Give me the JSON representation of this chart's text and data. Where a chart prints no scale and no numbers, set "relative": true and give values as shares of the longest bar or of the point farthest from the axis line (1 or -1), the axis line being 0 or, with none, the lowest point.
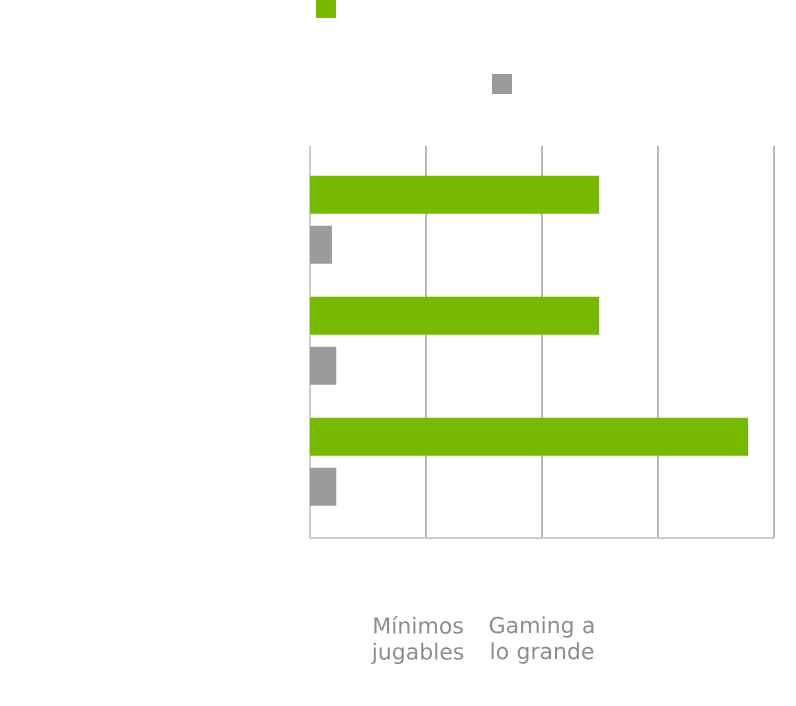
{
  "chart_data": {
    "type": "bar",
    "orientation": "horizontal",
    "relative": true,
    "categories": [
      null,
      null,
      null
    ],
    "series": [
      {
        "color": "#76b900",
        "values": [
          0.66,
          0.66,
          1
        ]
      },
      {
        "color": "#9b9b9b",
        "values": [
          0.05,
          0.06,
          0.06
        ]
      }
    ],
    "grid": "x",
    "annotations": [
      "Mínimos jugables",
      "Gaming a lo grande"
    ]
  }
}
